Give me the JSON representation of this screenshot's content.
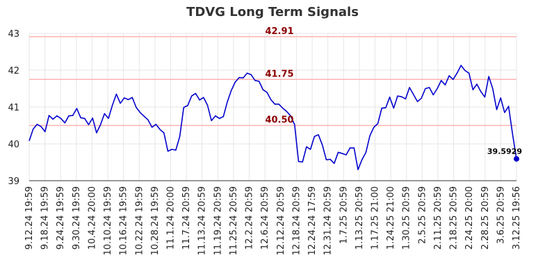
{
  "chart_data": {
    "type": "line",
    "title": "TDVG Long Term Signals",
    "xlabel": "",
    "ylabel": "",
    "ylim": [
      39,
      43
    ],
    "yticks": [
      39,
      40,
      41,
      42,
      43
    ],
    "grid": true,
    "legend": "none",
    "x_tick_labels": [
      "9.12.24 19:59",
      "9.18.24 19:59",
      "9.24.24 19:59",
      "9.30.24 19:59",
      "10.4.24 20:00",
      "10.10.24 19:59",
      "10.16.24 19:59",
      "10.22.24 19:59",
      "10.28.24 19:59",
      "11.1.24 20:00",
      "11.7.24 20:59",
      "11.13.24 20:59",
      "11.19.24 20:59",
      "11.25.24 20:59",
      "12.2.24 20:59",
      "12.6.24 20:59",
      "12.12.24 20:59",
      "12.18.24 20:59",
      "12.24.24 17:59",
      "12.31.24 20:59",
      "1.7.25 20:59",
      "1.13.25 20:59",
      "1.17.25 21:00",
      "1.24.25 21:00",
      "1.30.25 20:59",
      "2.5.25 20:59",
      "2.11.25 20:59",
      "2.18.25 20:59",
      "2.24.25 20:00",
      "2.28.25 20:59",
      "3.6.25 20:59",
      "3.12.25 19:56"
    ],
    "series": [
      {
        "color": "#0000cc",
        "values": [
          40.08,
          40.4,
          40.53,
          40.47,
          40.33,
          40.77,
          40.67,
          40.76,
          40.69,
          40.57,
          40.76,
          40.77,
          40.96,
          40.71,
          40.69,
          40.52,
          40.7,
          40.3,
          40.52,
          40.82,
          40.69,
          41.05,
          41.35,
          41.1,
          41.25,
          41.2,
          41.26,
          40.99,
          40.85,
          40.75,
          40.65,
          40.45,
          40.53,
          40.39,
          40.3,
          39.8,
          39.85,
          39.83,
          40.2,
          40.99,
          41.04,
          41.3,
          41.37,
          41.19,
          41.26,
          41.05,
          40.63,
          40.76,
          40.69,
          40.74,
          41.14,
          41.45,
          41.68,
          41.8,
          41.79,
          41.92,
          41.88,
          41.72,
          41.7,
          41.47,
          41.4,
          41.2,
          41.08,
          41.08,
          40.97,
          40.88,
          40.76,
          40.52,
          39.52,
          39.51,
          39.92,
          39.85,
          40.2,
          40.25,
          39.97,
          39.57,
          39.58,
          39.47,
          39.77,
          39.74,
          39.7,
          39.89,
          39.89,
          39.3,
          39.57,
          39.77,
          40.22,
          40.45,
          40.55,
          40.97,
          40.98,
          41.27,
          40.97,
          41.3,
          41.28,
          41.22,
          41.53,
          41.34,
          41.15,
          41.24,
          41.5,
          41.53,
          41.33,
          41.5,
          41.72,
          41.6,
          41.85,
          41.75,
          41.92,
          42.13,
          41.99,
          41.92,
          41.47,
          41.62,
          41.42,
          41.27,
          41.83,
          41.5,
          40.93,
          41.25,
          40.85,
          41.02,
          40.27,
          39.5929
        ]
      }
    ],
    "horizontal_lines": [
      {
        "value": 42.91,
        "label": "42.91",
        "color": "#ffb3b3"
      },
      {
        "value": 41.75,
        "label": "41.75",
        "color": "#ffb3b3"
      },
      {
        "value": 40.5,
        "label": "40.50",
        "color": "#ffb3b3"
      }
    ],
    "last_value": {
      "value": 39.5929,
      "label": "39.5929",
      "color": "#0000cc"
    }
  }
}
